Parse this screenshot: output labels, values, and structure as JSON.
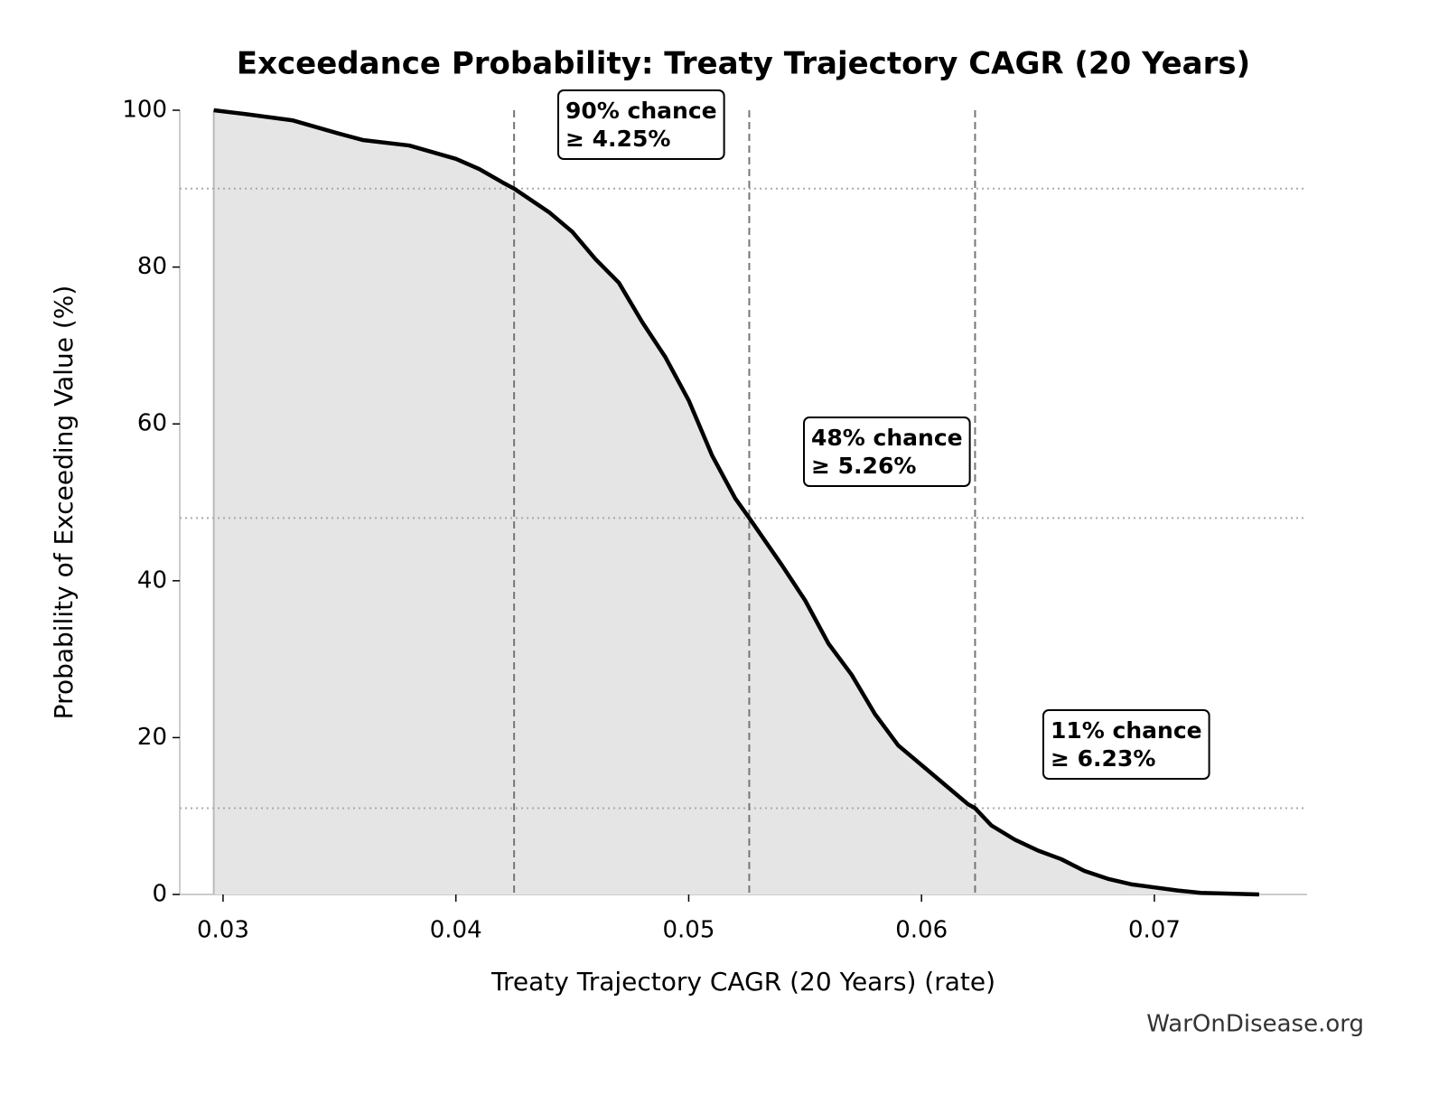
{
  "chart_data": {
    "type": "line",
    "title": "Exceedance Probability: Treaty Trajectory CAGR (20 Years)",
    "xlabel": "Treaty Trajectory CAGR (20 Years) (rate)",
    "ylabel": "Probability of Exceeding Value (%)",
    "source": "WarOnDisease.org",
    "color": "#000000",
    "fill_color": "#e5e5e5",
    "x": [
      0.0296,
      0.031,
      0.033,
      0.035,
      0.036,
      0.038,
      0.04,
      0.041,
      0.042,
      0.0425,
      0.044,
      0.045,
      0.046,
      0.047,
      0.048,
      0.049,
      0.05,
      0.051,
      0.052,
      0.0526,
      0.054,
      0.055,
      0.056,
      0.057,
      0.058,
      0.059,
      0.06,
      0.061,
      0.062,
      0.0623,
      0.063,
      0.064,
      0.065,
      0.066,
      0.067,
      0.068,
      0.069,
      0.07,
      0.071,
      0.072,
      0.0745
    ],
    "values": [
      100,
      99.5,
      98.7,
      97,
      96.2,
      95.5,
      93.8,
      92.5,
      90.8,
      90,
      87,
      84.5,
      81,
      78,
      73,
      68.5,
      63,
      56,
      50.5,
      48,
      42,
      37.5,
      32,
      28,
      23,
      19,
      16.5,
      14,
      11.5,
      11,
      8.8,
      7,
      5.6,
      4.5,
      3,
      2,
      1.3,
      0.9,
      0.5,
      0.2,
      0
    ],
    "reference_lines": {
      "x": [
        0.0425,
        0.0526,
        0.0623
      ],
      "y": [
        90,
        48,
        11
      ]
    },
    "annotations": [
      [
        "90% chance",
        "≥ 4.25%"
      ],
      [
        "48% chance",
        "≥ 5.26%"
      ],
      [
        "11% chance",
        "≥ 6.23%"
      ]
    ],
    "xlim": [
      0.02814,
      0.07656
    ],
    "ylim": [
      0,
      100
    ],
    "xticks": [
      0.03,
      0.04,
      0.05,
      0.06,
      0.07
    ],
    "yticks": [
      0,
      20,
      40,
      60,
      80,
      100
    ]
  }
}
